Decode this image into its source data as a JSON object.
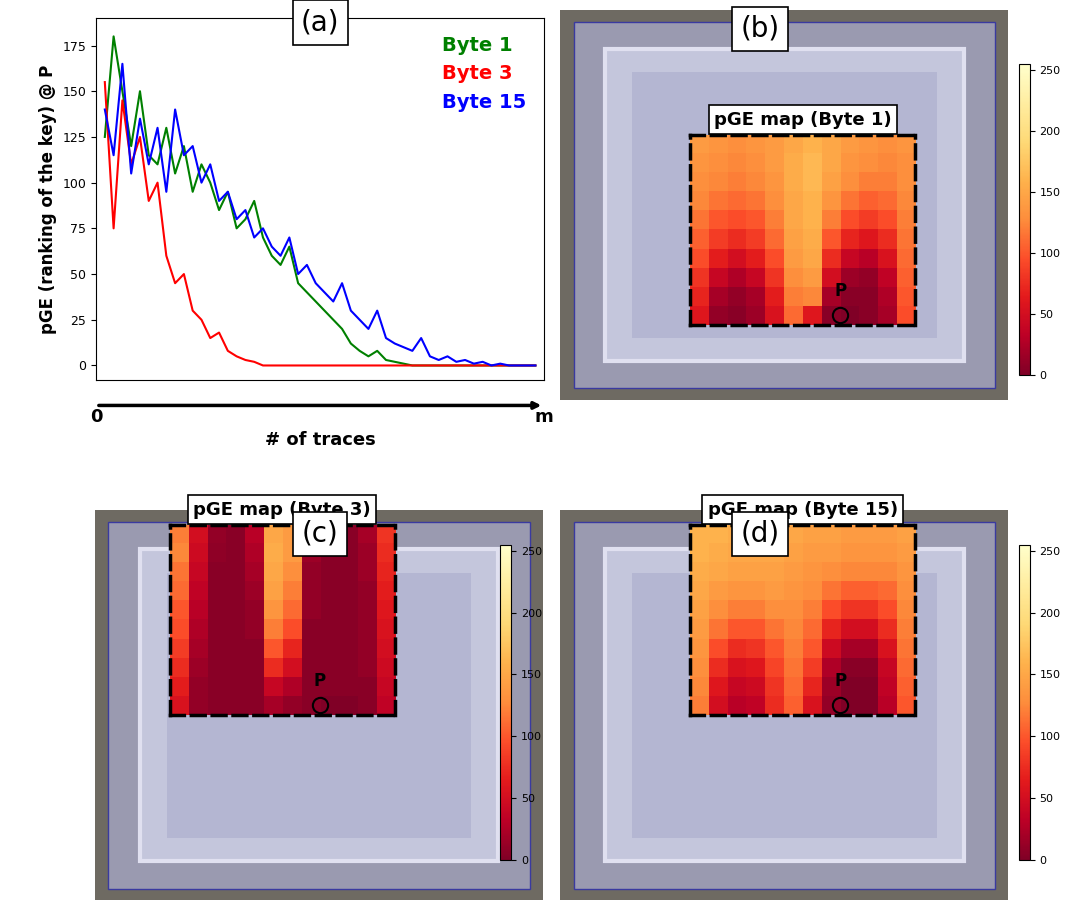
{
  "chart_data": [
    {
      "type": "line",
      "panel_label": "(a)",
      "x_label": "# of traces",
      "y_label": "pGE (ranking of the key) @ P",
      "x": [
        2,
        4,
        6,
        8,
        10,
        12,
        14,
        16,
        18,
        20,
        22,
        24,
        26,
        28,
        30,
        32,
        34,
        36,
        38,
        40,
        42,
        44,
        46,
        48,
        50,
        52,
        54,
        56,
        58,
        60,
        62,
        64,
        66,
        68,
        70,
        72,
        74,
        76,
        78,
        80,
        82,
        84,
        86,
        88,
        90,
        92,
        94,
        96,
        98,
        100
      ],
      "xlim": [
        0,
        102
      ],
      "xticks": [
        0,
        {
          "value": 102,
          "label": "m"
        }
      ],
      "ylim": [
        -8,
        190
      ],
      "yticks": [
        0,
        25,
        50,
        75,
        100,
        125,
        150,
        175
      ],
      "legend": "upper right",
      "series": [
        {
          "name": "Byte 1",
          "color": "green",
          "values": [
            125,
            180,
            150,
            120,
            150,
            115,
            110,
            130,
            105,
            120,
            95,
            110,
            100,
            85,
            95,
            75,
            80,
            90,
            70,
            60,
            55,
            65,
            45,
            40,
            35,
            30,
            25,
            20,
            12,
            8,
            5,
            8,
            3,
            2,
            1,
            0,
            0,
            0,
            0,
            0,
            0,
            0,
            0,
            0,
            0,
            0,
            0,
            0,
            0,
            0
          ]
        },
        {
          "name": "Byte 3",
          "color": "red",
          "values": [
            155,
            75,
            145,
            110,
            125,
            90,
            100,
            60,
            45,
            50,
            30,
            25,
            15,
            18,
            8,
            5,
            3,
            2,
            0,
            0,
            0,
            0,
            0,
            0,
            0,
            0,
            0,
            0,
            0,
            0,
            0,
            0,
            0,
            0,
            0,
            0,
            0,
            0,
            0,
            0,
            0,
            0,
            0,
            0,
            0,
            0,
            0,
            0,
            0,
            0
          ]
        },
        {
          "name": "Byte 15",
          "color": "blue",
          "values": [
            140,
            115,
            165,
            105,
            135,
            110,
            130,
            95,
            140,
            115,
            120,
            100,
            110,
            90,
            95,
            80,
            85,
            70,
            75,
            65,
            60,
            70,
            50,
            55,
            45,
            40,
            35,
            45,
            30,
            25,
            20,
            30,
            15,
            12,
            10,
            8,
            15,
            5,
            3,
            5,
            2,
            3,
            1,
            2,
            0,
            1,
            0,
            0,
            0,
            0
          ]
        }
      ]
    },
    {
      "type": "heatmap",
      "panel_label": "(b)",
      "title": "pGE map (Byte 1)",
      "tick_labels": false,
      "color_range": [
        0,
        255
      ],
      "color_ticks": [
        0,
        50,
        100,
        150,
        200,
        250
      ],
      "annotation": {
        "text": "P",
        "col": 7.5,
        "row": 9
      },
      "cells": [
        [
          140,
          135,
          130,
          135,
          140,
          150,
          160,
          150,
          140,
          135,
          130,
          135
        ],
        [
          135,
          130,
          125,
          130,
          140,
          155,
          165,
          150,
          135,
          130,
          125,
          130
        ],
        [
          130,
          125,
          120,
          125,
          135,
          155,
          165,
          145,
          130,
          120,
          120,
          130
        ],
        [
          125,
          115,
          110,
          115,
          130,
          150,
          160,
          135,
          115,
          105,
          110,
          125
        ],
        [
          115,
          100,
          95,
          100,
          120,
          150,
          160,
          120,
          95,
          85,
          95,
          120
        ],
        [
          105,
          85,
          75,
          85,
          110,
          145,
          155,
          100,
          70,
          60,
          75,
          115
        ],
        [
          95,
          65,
          50,
          65,
          95,
          140,
          150,
          75,
          40,
          30,
          55,
          110
        ],
        [
          80,
          40,
          25,
          40,
          80,
          130,
          140,
          50,
          15,
          10,
          35,
          105
        ],
        [
          70,
          20,
          10,
          20,
          65,
          120,
          125,
          20,
          5,
          5,
          25,
          100
        ],
        [
          60,
          10,
          5,
          15,
          55,
          110,
          60,
          5,
          0,
          5,
          20,
          95
        ]
      ]
    },
    {
      "type": "heatmap",
      "panel_label": "(c)",
      "title": "pGE map (Byte 3)",
      "tick_labels": false,
      "color_range": [
        0,
        255
      ],
      "color_ticks": [
        0,
        50,
        100,
        150,
        200,
        250
      ],
      "annotation": {
        "text": "P",
        "col": 7.5,
        "row": 9
      },
      "cells": [
        [
          120,
          50,
          10,
          5,
          30,
          150,
          140,
          20,
          5,
          5,
          20,
          80
        ],
        [
          125,
          45,
          8,
          5,
          25,
          155,
          140,
          15,
          5,
          5,
          15,
          75
        ],
        [
          115,
          40,
          5,
          5,
          20,
          150,
          130,
          10,
          5,
          5,
          15,
          70
        ],
        [
          110,
          35,
          5,
          5,
          15,
          145,
          120,
          10,
          5,
          5,
          10,
          65
        ],
        [
          100,
          30,
          5,
          5,
          10,
          135,
          110,
          10,
          5,
          5,
          10,
          60
        ],
        [
          95,
          25,
          5,
          5,
          10,
          120,
          95,
          5,
          5,
          5,
          10,
          55
        ],
        [
          85,
          20,
          5,
          5,
          5,
          100,
          70,
          5,
          5,
          5,
          10,
          50
        ],
        [
          75,
          15,
          5,
          5,
          5,
          75,
          50,
          5,
          5,
          5,
          10,
          45
        ],
        [
          65,
          10,
          5,
          5,
          5,
          40,
          25,
          5,
          5,
          5,
          5,
          40
        ],
        [
          55,
          10,
          5,
          5,
          5,
          20,
          10,
          5,
          0,
          0,
          5,
          35
        ]
      ]
    },
    {
      "type": "heatmap",
      "panel_label": "(d)",
      "title": "pGE map (Byte 15)",
      "tick_labels": false,
      "color_range": [
        0,
        255
      ],
      "color_ticks": [
        0,
        50,
        100,
        150,
        200,
        250
      ],
      "annotation": {
        "text": "P",
        "col": 7.5,
        "row": 9
      },
      "cells": [
        [
          160,
          160,
          155,
          155,
          150,
          150,
          145,
          145,
          140,
          140,
          140,
          145
        ],
        [
          160,
          155,
          150,
          150,
          150,
          145,
          140,
          140,
          135,
          135,
          135,
          140
        ],
        [
          155,
          150,
          145,
          145,
          145,
          140,
          135,
          130,
          125,
          125,
          125,
          135
        ],
        [
          150,
          140,
          135,
          135,
          140,
          135,
          130,
          115,
          105,
          105,
          110,
          130
        ],
        [
          145,
          130,
          120,
          120,
          130,
          130,
          120,
          95,
          80,
          80,
          95,
          125
        ],
        [
          140,
          115,
          100,
          100,
          115,
          125,
          110,
          70,
          50,
          50,
          75,
          120
        ],
        [
          135,
          95,
          75,
          80,
          100,
          120,
          100,
          45,
          20,
          20,
          55,
          115
        ],
        [
          130,
          75,
          55,
          60,
          90,
          115,
          85,
          25,
          5,
          5,
          40,
          110
        ],
        [
          125,
          60,
          40,
          45,
          80,
          110,
          70,
          15,
          0,
          0,
          35,
          105
        ],
        [
          120,
          50,
          30,
          35,
          75,
          105,
          55,
          10,
          0,
          0,
          30,
          100
        ]
      ]
    }
  ]
}
